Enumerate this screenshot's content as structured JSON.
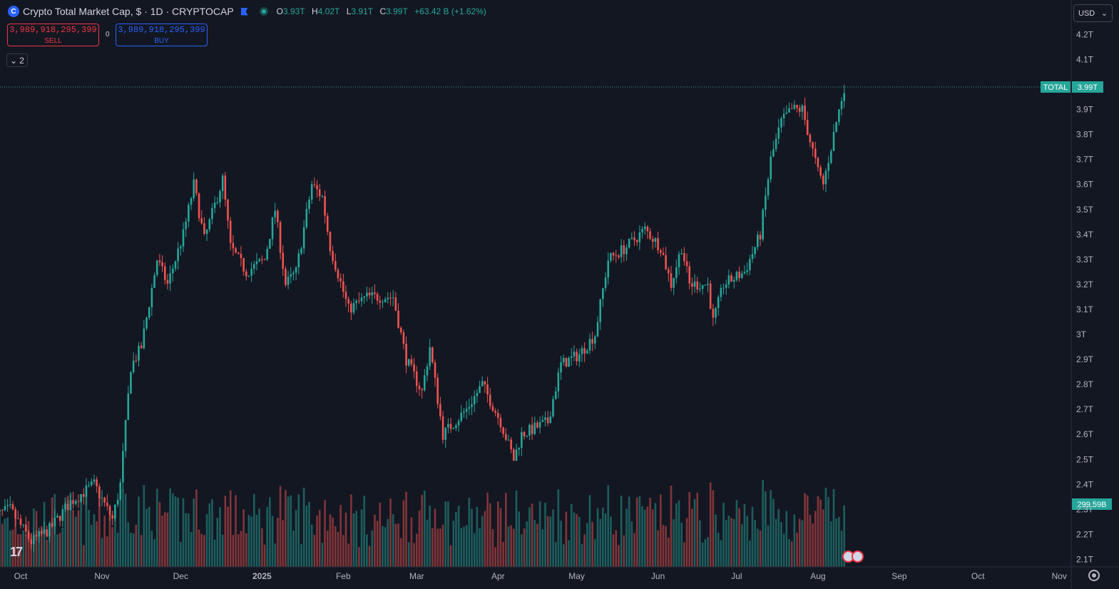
{
  "header": {
    "title": "Crypto Total Market Cap, $ · 1D · CRYPTOCAP",
    "ohlc": {
      "o_label": "O",
      "o": "3.93T",
      "h_label": "H",
      "h": "4.02T",
      "l_label": "L",
      "l": "3.91T",
      "c_label": "C",
      "c": "3.99T",
      "change": "+63.42 B (+1.62%)"
    }
  },
  "trade": {
    "sell_price": "3,989,918,295,399",
    "sell_label": "SELL",
    "buy_price": "3,989,918,295,399",
    "buy_label": "BUY",
    "spread": "0"
  },
  "indicators": {
    "collapsed_count": "2"
  },
  "currency": {
    "selected": "USD"
  },
  "icons": {
    "logo": "crypto-logo-icon",
    "flag": "flag-icon",
    "status": "market-status-icon",
    "chevron": "chevron-down-icon",
    "settings": "settings-icon",
    "events": "economic-events-icon",
    "brand": "tradingview-logo"
  },
  "colors": {
    "background": "#131722",
    "up": "#26a69a",
    "down": "#ef5350",
    "price_label": "#26a69a"
  },
  "chart_data": {
    "type": "candlestick",
    "series_name": "TOTAL",
    "timeframe": "1D",
    "x_axis": {
      "labels": [
        "Oct",
        "Nov",
        "Dec",
        "2025",
        "Feb",
        "Mar",
        "Apr",
        "May",
        "Jun",
        "Jul",
        "Aug",
        "Sep",
        "Oct",
        "Nov"
      ]
    },
    "y_axis": {
      "labels": [
        "4.2T",
        "4.1T",
        "3.9T",
        "3.8T",
        "3.7T",
        "3.6T",
        "3.5T",
        "3.4T",
        "3.3T",
        "3.2T",
        "3.1T",
        "3T",
        "2.9T",
        "2.8T",
        "2.7T",
        "2.6T",
        "2.5T",
        "2.4T",
        "2.3T",
        "2.2T",
        "2.1T"
      ],
      "range_trillions": [
        2.07,
        4.26
      ],
      "scale": "linear",
      "grid": false
    },
    "last_price_label": {
      "name": "TOTAL",
      "value": "3.99T"
    },
    "volume_label": "299.59B",
    "close_path_trillions": [
      [
        "2024-09-20",
        2.27
      ],
      [
        "2024-09-27",
        2.3
      ],
      [
        "2024-10-05",
        2.17
      ],
      [
        "2024-10-12",
        2.22
      ],
      [
        "2024-10-20",
        2.33
      ],
      [
        "2024-10-29",
        2.4
      ],
      [
        "2024-11-05",
        2.26
      ],
      [
        "2024-11-08",
        2.4
      ],
      [
        "2024-11-12",
        2.87
      ],
      [
        "2024-11-16",
        2.95
      ],
      [
        "2024-11-22",
        3.3
      ],
      [
        "2024-11-26",
        3.2
      ],
      [
        "2024-12-02",
        3.4
      ],
      [
        "2024-12-06",
        3.6
      ],
      [
        "2024-12-10",
        3.38
      ],
      [
        "2024-12-17",
        3.62
      ],
      [
        "2024-12-20",
        3.35
      ],
      [
        "2024-12-26",
        3.25
      ],
      [
        "2025-01-02",
        3.3
      ],
      [
        "2025-01-06",
        3.5
      ],
      [
        "2025-01-10",
        3.2
      ],
      [
        "2025-01-14",
        3.25
      ],
      [
        "2025-01-20",
        3.6
      ],
      [
        "2025-01-24",
        3.55
      ],
      [
        "2025-01-27",
        3.35
      ],
      [
        "2025-02-03",
        3.1
      ],
      [
        "2025-02-10",
        3.15
      ],
      [
        "2025-02-20",
        3.15
      ],
      [
        "2025-02-25",
        2.9
      ],
      [
        "2025-03-03",
        2.77
      ],
      [
        "2025-03-06",
        2.95
      ],
      [
        "2025-03-11",
        2.6
      ],
      [
        "2025-03-20",
        2.7
      ],
      [
        "2025-03-26",
        2.8
      ],
      [
        "2025-04-02",
        2.65
      ],
      [
        "2025-04-07",
        2.5
      ],
      [
        "2025-04-10",
        2.6
      ],
      [
        "2025-04-20",
        2.65
      ],
      [
        "2025-04-25",
        2.88
      ],
      [
        "2025-05-02",
        2.92
      ],
      [
        "2025-05-08",
        3.0
      ],
      [
        "2025-05-13",
        3.3
      ],
      [
        "2025-05-20",
        3.35
      ],
      [
        "2025-05-27",
        3.42
      ],
      [
        "2025-06-02",
        3.35
      ],
      [
        "2025-06-06",
        3.2
      ],
      [
        "2025-06-10",
        3.35
      ],
      [
        "2025-06-13",
        3.2
      ],
      [
        "2025-06-20",
        3.2
      ],
      [
        "2025-06-22",
        3.05
      ],
      [
        "2025-06-26",
        3.2
      ],
      [
        "2025-07-04",
        3.25
      ],
      [
        "2025-07-10",
        3.4
      ],
      [
        "2025-07-14",
        3.7
      ],
      [
        "2025-07-18",
        3.85
      ],
      [
        "2025-07-22",
        3.9
      ],
      [
        "2025-07-26",
        3.9
      ],
      [
        "2025-08-01",
        3.65
      ],
      [
        "2025-08-03",
        3.6
      ],
      [
        "2025-08-08",
        3.85
      ],
      [
        "2025-08-11",
        3.99
      ]
    ]
  }
}
